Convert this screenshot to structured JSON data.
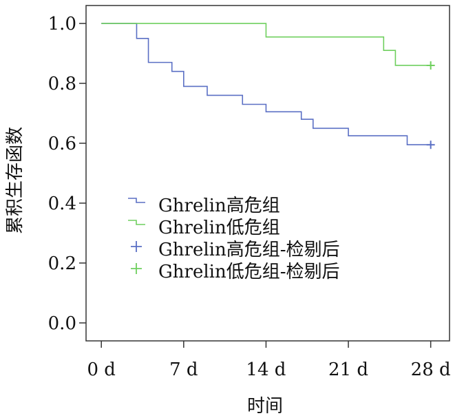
{
  "chart_data": {
    "type": "line",
    "title": "",
    "xlabel": "时间",
    "ylabel": "累积生存函数",
    "xlim": [
      -1.3,
      29.6
    ],
    "ylim": [
      -0.06,
      1.06
    ],
    "x_ticks": [
      0,
      7,
      14,
      21,
      28
    ],
    "x_tick_labels": [
      "0 d",
      "7 d",
      "14 d",
      "21 d",
      "28 d"
    ],
    "y_ticks": [
      0.0,
      0.2,
      0.4,
      0.6,
      0.8,
      1.0
    ],
    "y_tick_labels": [
      "0.0",
      "0.2",
      "0.4",
      "0.6",
      "0.8",
      "1.0"
    ],
    "grid": false,
    "legend_position": "lower-left",
    "series": [
      {
        "name": "Ghrelin高危组",
        "style": "step",
        "color": "#5a6fc4",
        "x": [
          0,
          3,
          4,
          6,
          7,
          9,
          12,
          14,
          17,
          18,
          21,
          26,
          28
        ],
        "y": [
          1.0,
          0.95,
          0.87,
          0.84,
          0.79,
          0.76,
          0.73,
          0.705,
          0.68,
          0.65,
          0.625,
          0.595,
          0.595
        ]
      },
      {
        "name": "Ghrelin低危组",
        "style": "step",
        "color": "#6fcf5e",
        "x": [
          0,
          14,
          24,
          25,
          28
        ],
        "y": [
          1.0,
          0.955,
          0.91,
          0.86,
          0.86
        ]
      },
      {
        "name": "Ghrelin高危组-检剔后",
        "style": "censored",
        "color": "#5a6fc4",
        "x": [
          28
        ],
        "y": [
          0.595
        ]
      },
      {
        "name": "Ghrelin低危组-检剔后",
        "style": "censored",
        "color": "#6fcf5e",
        "x": [
          28
        ],
        "y": [
          0.86
        ]
      }
    ]
  }
}
